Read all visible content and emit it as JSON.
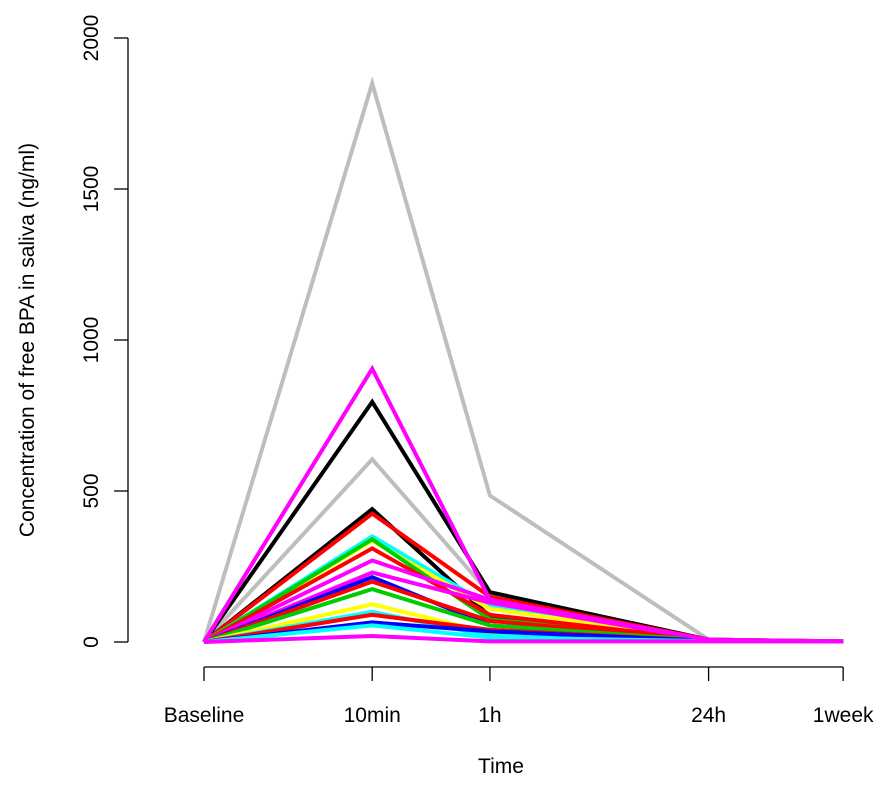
{
  "chart_data": {
    "type": "line",
    "xlabel": "Time",
    "ylabel": "Concentration of free BPA in saliva (ng/ml)",
    "categories": [
      "Baseline",
      "10min",
      "1h",
      "24h",
      "1week"
    ],
    "x": [
      0,
      1,
      1.7,
      3,
      3.8
    ],
    "ylim": [
      0,
      2000
    ],
    "yticks": [
      0,
      500,
      1000,
      1500,
      2000
    ],
    "grid": false,
    "series": [
      {
        "color": "#BEBEBE",
        "values": [
          0,
          1850,
          485,
          8,
          2
        ]
      },
      {
        "color": "#BEBEBE",
        "values": [
          0,
          605,
          160,
          8,
          2
        ]
      },
      {
        "color": "#000000",
        "values": [
          0,
          795,
          165,
          8,
          2
        ]
      },
      {
        "color": "#000000",
        "values": [
          0,
          440,
          85,
          6,
          2
        ]
      },
      {
        "color": "#FF0000",
        "values": [
          0,
          425,
          150,
          8,
          2
        ]
      },
      {
        "color": "#00FFFF",
        "values": [
          0,
          350,
          120,
          7,
          2
        ]
      },
      {
        "color": "#FFFF00",
        "values": [
          0,
          335,
          110,
          7,
          2
        ]
      },
      {
        "color": "#00CD00",
        "values": [
          0,
          340,
          75,
          6,
          2
        ]
      },
      {
        "color": "#FF0000",
        "values": [
          0,
          310,
          90,
          6,
          2
        ]
      },
      {
        "color": "#FF00FF",
        "values": [
          0,
          270,
          140,
          7,
          2
        ]
      },
      {
        "color": "#FF00FF",
        "values": [
          0,
          230,
          130,
          7,
          2
        ]
      },
      {
        "color": "#0000FF",
        "values": [
          0,
          215,
          55,
          5,
          2
        ]
      },
      {
        "color": "#FF0000",
        "values": [
          0,
          200,
          70,
          5,
          2
        ]
      },
      {
        "color": "#00CD00",
        "values": [
          0,
          175,
          55,
          5,
          2
        ]
      },
      {
        "color": "#FFFF00",
        "values": [
          0,
          125,
          30,
          4,
          2
        ]
      },
      {
        "color": "#00FFFF",
        "values": [
          0,
          100,
          20,
          4,
          2
        ]
      },
      {
        "color": "#FF0000",
        "values": [
          0,
          90,
          40,
          4,
          2
        ]
      },
      {
        "color": "#0000FF",
        "values": [
          0,
          65,
          35,
          4,
          2
        ]
      },
      {
        "color": "#00FFFF",
        "values": [
          0,
          55,
          15,
          3,
          2
        ]
      },
      {
        "color": "#FF00FF",
        "values": [
          0,
          20,
          2,
          2,
          2
        ]
      },
      {
        "color": "#FF00FF",
        "values": [
          0,
          905,
          140,
          8,
          2
        ]
      }
    ]
  }
}
